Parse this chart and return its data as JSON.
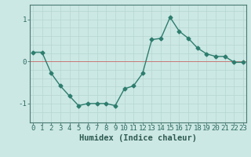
{
  "x": [
    0,
    1,
    2,
    3,
    4,
    5,
    6,
    7,
    8,
    9,
    10,
    11,
    12,
    13,
    14,
    15,
    16,
    17,
    18,
    19,
    20,
    21,
    22,
    23
  ],
  "y": [
    0.22,
    0.22,
    -0.28,
    -0.58,
    -0.82,
    -1.05,
    -1.0,
    -1.0,
    -1.0,
    -1.05,
    -0.65,
    -0.58,
    -0.28,
    0.52,
    0.55,
    1.05,
    0.72,
    0.55,
    0.32,
    0.18,
    0.12,
    0.12,
    -0.02,
    -0.02
  ],
  "line_color": "#2d7d6e",
  "marker": "D",
  "marker_size": 2.5,
  "line_width": 1.0,
  "bg_color": "#cce8e4",
  "grid_major_color": "#b8d8d4",
  "grid_minor_color": "#c8e2de",
  "xlabel": "Humidex (Indice chaleur)",
  "xlabel_fontsize": 7.5,
  "yticks": [
    -1,
    0,
    1
  ],
  "xticks": [
    0,
    1,
    2,
    3,
    4,
    5,
    6,
    7,
    8,
    9,
    10,
    11,
    12,
    13,
    14,
    15,
    16,
    17,
    18,
    19,
    20,
    21,
    22,
    23
  ],
  "xlim": [
    -0.3,
    23.3
  ],
  "ylim": [
    -1.45,
    1.35
  ],
  "tick_fontsize": 6.5,
  "axis_color": "#4a7a72",
  "spine_color": "#4a7a72",
  "red_line_y": 0,
  "red_line_color": "#c87878"
}
